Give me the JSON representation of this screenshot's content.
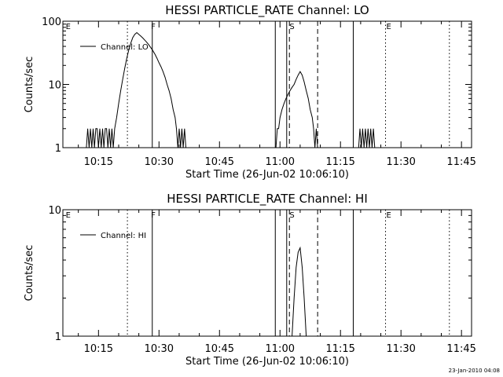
{
  "footer": {
    "timestamp": "23-Jan-2010 04:08"
  },
  "chart_data": [
    {
      "type": "line",
      "title": "HESSI PARTICLE_RATE Channel: LO",
      "xlabel": "Start Time (26-Jun-02 10:06:10)",
      "ylabel": "Counts/sec",
      "yscale": "log",
      "ylim": [
        1,
        100
      ],
      "xlim": [
        "10:06:10",
        "11:47:30"
      ],
      "x_ticks": [
        "10:15",
        "10:30",
        "10:45",
        "11:00",
        "11:15",
        "11:30",
        "11:45"
      ],
      "y_ticks": [
        "1",
        "10",
        "100"
      ],
      "legend": "top-left",
      "grid": false,
      "series": [
        {
          "name": "Channel: LO",
          "points": [
            [
              "10:12:00",
              1
            ],
            [
              "10:12:20",
              2
            ],
            [
              "10:12:40",
              1
            ],
            [
              "10:13:00",
              2
            ],
            [
              "10:13:20",
              1
            ],
            [
              "10:13:40",
              2
            ],
            [
              "10:14:00",
              1
            ],
            [
              "10:14:20",
              2
            ],
            [
              "10:14:40",
              2
            ],
            [
              "10:15:00",
              1
            ],
            [
              "10:15:20",
              2
            ],
            [
              "10:15:40",
              1
            ],
            [
              "10:16:00",
              2
            ],
            [
              "10:16:20",
              1
            ],
            [
              "10:16:40",
              2
            ],
            [
              "10:17:00",
              2
            ],
            [
              "10:17:20",
              1
            ],
            [
              "10:17:40",
              2
            ],
            [
              "10:18:00",
              1
            ],
            [
              "10:18:20",
              2
            ],
            [
              "10:18:40",
              1
            ],
            [
              "10:19:00",
              2
            ],
            [
              "10:19:30",
              3
            ],
            [
              "10:20:00",
              5
            ],
            [
              "10:20:30",
              8
            ],
            [
              "10:21:00",
              12
            ],
            [
              "10:21:30",
              18
            ],
            [
              "10:22:00",
              26
            ],
            [
              "10:22:30",
              35
            ],
            [
              "10:23:00",
              45
            ],
            [
              "10:23:30",
              55
            ],
            [
              "10:24:00",
              62
            ],
            [
              "10:24:30",
              66
            ],
            [
              "10:25:00",
              62
            ],
            [
              "10:25:30",
              58
            ],
            [
              "10:26:00",
              54
            ],
            [
              "10:26:30",
              50
            ],
            [
              "10:27:00",
              46
            ],
            [
              "10:27:30",
              42
            ],
            [
              "10:28:00",
              38
            ],
            [
              "10:28:30",
              34
            ],
            [
              "10:29:00",
              30
            ],
            [
              "10:29:30",
              26
            ],
            [
              "10:30:00",
              22
            ],
            [
              "10:30:30",
              19
            ],
            [
              "10:31:00",
              16
            ],
            [
              "10:31:30",
              13
            ],
            [
              "10:32:00",
              10
            ],
            [
              "10:32:30",
              8
            ],
            [
              "10:33:00",
              6
            ],
            [
              "10:33:30",
              4
            ],
            [
              "10:34:00",
              3
            ],
            [
              "10:34:20",
              2
            ],
            [
              "10:34:40",
              1
            ],
            [
              "10:35:00",
              2
            ],
            [
              "10:35:20",
              1
            ],
            [
              "10:35:40",
              2
            ],
            [
              "10:36:00",
              1
            ],
            [
              "10:36:20",
              2
            ],
            [
              "10:36:40",
              1
            ],
            [
              "10:59:00",
              1
            ],
            [
              "10:59:20",
              2
            ],
            [
              "10:59:40",
              2
            ],
            [
              "11:00:00",
              3
            ],
            [
              "11:00:30",
              4
            ],
            [
              "11:01:00",
              5
            ],
            [
              "11:01:30",
              6
            ],
            [
              "11:02:00",
              7
            ],
            [
              "11:02:30",
              8
            ],
            [
              "11:03:00",
              9
            ],
            [
              "11:03:30",
              10
            ],
            [
              "11:04:00",
              12
            ],
            [
              "11:04:30",
              14
            ],
            [
              "11:05:00",
              16
            ],
            [
              "11:05:30",
              14
            ],
            [
              "11:06:00",
              11
            ],
            [
              "11:06:30",
              8
            ],
            [
              "11:07:00",
              6
            ],
            [
              "11:07:30",
              4
            ],
            [
              "11:08:00",
              3
            ],
            [
              "11:08:20",
              2
            ],
            [
              "11:08:40",
              1
            ],
            [
              "11:09:00",
              2
            ],
            [
              "11:09:20",
              1
            ],
            [
              "11:19:30",
              1
            ],
            [
              "11:19:50",
              2
            ],
            [
              "11:20:10",
              1
            ],
            [
              "11:20:30",
              2
            ],
            [
              "11:20:50",
              1
            ],
            [
              "11:21:10",
              2
            ],
            [
              "11:21:30",
              1
            ],
            [
              "11:21:50",
              2
            ],
            [
              "11:22:10",
              1
            ],
            [
              "11:22:30",
              2
            ],
            [
              "11:22:50",
              1
            ],
            [
              "11:23:10",
              2
            ],
            [
              "11:23:30",
              1
            ]
          ]
        }
      ],
      "annotations": [
        {
          "text": "E",
          "x": "10:06:40"
        },
        {
          "text": "F",
          "x": "10:27:50"
        },
        {
          "text": "S",
          "x": "11:02:10"
        },
        {
          "text": "E",
          "x": "11:26:10"
        }
      ],
      "markers": [
        {
          "x": "10:22:10",
          "style": "dotted"
        },
        {
          "x": "10:28:20",
          "style": "solid"
        },
        {
          "x": "10:58:50",
          "style": "solid"
        },
        {
          "x": "11:01:40",
          "style": "solid"
        },
        {
          "x": "11:02:20",
          "style": "dashed"
        },
        {
          "x": "11:09:20",
          "style": "dashed"
        },
        {
          "x": "11:18:10",
          "style": "solid"
        },
        {
          "x": "11:26:10",
          "style": "dotted"
        },
        {
          "x": "11:42:00",
          "style": "dotted"
        }
      ]
    },
    {
      "type": "line",
      "title": "HESSI PARTICLE_RATE Channel: HI",
      "xlabel": "Start Time (26-Jun-02 10:06:10)",
      "ylabel": "Counts/sec",
      "yscale": "log",
      "ylim": [
        1,
        10
      ],
      "xlim": [
        "10:06:10",
        "11:47:30"
      ],
      "x_ticks": [
        "10:15",
        "10:30",
        "10:45",
        "11:00",
        "11:15",
        "11:30",
        "11:45"
      ],
      "y_ticks": [
        "1",
        "10"
      ],
      "legend": "top-left",
      "grid": false,
      "series": [
        {
          "name": "Channel: HI",
          "points": [
            [
              "11:03:00",
              1
            ],
            [
              "11:03:30",
              2
            ],
            [
              "11:04:00",
              3.5
            ],
            [
              "11:04:30",
              4.6
            ],
            [
              "11:05:00",
              5
            ],
            [
              "11:05:30",
              3.5
            ],
            [
              "11:06:00",
              2
            ],
            [
              "11:06:30",
              1
            ]
          ]
        }
      ],
      "annotations": [
        {
          "text": "E",
          "x": "10:06:40"
        },
        {
          "text": "F",
          "x": "10:27:50"
        },
        {
          "text": "S",
          "x": "11:02:10"
        },
        {
          "text": "E",
          "x": "11:26:10"
        }
      ],
      "markers": [
        {
          "x": "10:22:10",
          "style": "dotted"
        },
        {
          "x": "10:28:20",
          "style": "solid"
        },
        {
          "x": "10:58:50",
          "style": "solid"
        },
        {
          "x": "11:01:40",
          "style": "solid"
        },
        {
          "x": "11:02:20",
          "style": "dashed"
        },
        {
          "x": "11:09:20",
          "style": "dashed"
        },
        {
          "x": "11:18:10",
          "style": "solid"
        },
        {
          "x": "11:26:10",
          "style": "dotted"
        },
        {
          "x": "11:42:00",
          "style": "dotted"
        }
      ]
    }
  ]
}
